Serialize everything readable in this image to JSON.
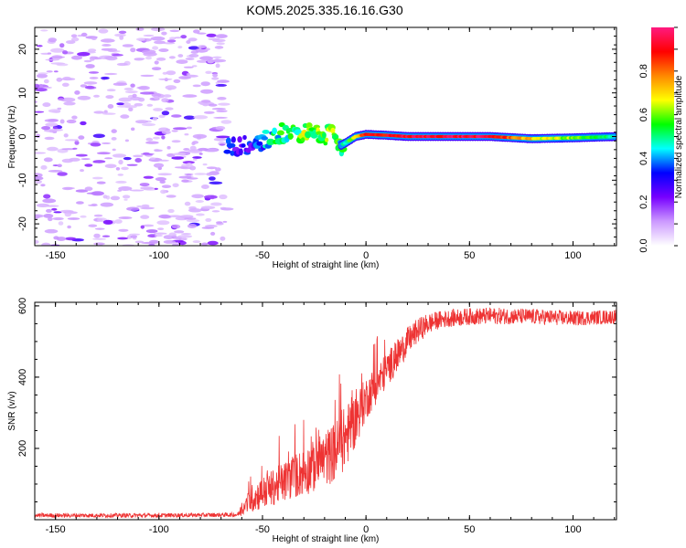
{
  "title": "KOM5.2025.335.16.16.G30",
  "chart_data": [
    {
      "type": "heatmap",
      "name": "spectrogram",
      "xlabel": "Height of straight line (km)",
      "ylabel": "Frequency (Hz)",
      "xlim": [
        -160,
        121
      ],
      "ylim": [
        -25,
        25
      ],
      "xticks": [
        -150,
        -100,
        -50,
        0,
        50,
        100
      ],
      "yticks": [
        -20,
        -10,
        0,
        10,
        20
      ],
      "colorbar": {
        "label": "Normalized spectral amplitude",
        "range": [
          0,
          1
        ],
        "ticks": [
          0.0,
          0.2,
          0.4,
          0.6,
          0.8
        ],
        "colors": [
          "#ffffff",
          "#cc99ff",
          "#7700ff",
          "#0000ff",
          "#00ffff",
          "#00ff00",
          "#ffff00",
          "#ff8800",
          "#ff0000",
          "#ff1a80"
        ]
      },
      "noise_region_x": [
        -160,
        -67
      ],
      "signal_track": {
        "x": [
          -67,
          -60,
          -55,
          -50,
          -45,
          -40,
          -35,
          -30,
          -25,
          -20,
          -15,
          -12,
          -10,
          -5,
          0,
          10,
          20,
          40,
          60,
          80,
          100,
          121
        ],
        "freq": [
          -2.5,
          -2,
          -2,
          -1,
          0,
          1,
          0.5,
          1,
          0.5,
          0.5,
          0,
          -2,
          -1.5,
          0,
          0.5,
          0.3,
          0,
          0,
          0,
          -0.5,
          -0.3,
          0
        ],
        "amplitude": [
          0.3,
          0.25,
          0.3,
          0.35,
          0.45,
          0.5,
          0.5,
          0.6,
          0.55,
          0.6,
          0.6,
          0.45,
          0.5,
          0.7,
          0.85,
          0.9,
          0.92,
          0.95,
          0.93,
          0.7,
          0.6,
          0.45
        ]
      }
    },
    {
      "type": "line",
      "name": "snr",
      "xlabel": "Height of straight line (km)",
      "ylabel": "SNR (v/v)",
      "xlim": [
        -160,
        121
      ],
      "ylim": [
        0,
        610
      ],
      "xticks": [
        -150,
        -100,
        -50,
        0,
        50,
        100
      ],
      "yticks": [
        200,
        400,
        600
      ],
      "color": "#ee3333",
      "trend": {
        "x": [
          -160,
          -100,
          -62,
          -55,
          -45,
          -35,
          -25,
          -15,
          -10,
          -5,
          0,
          5,
          10,
          15,
          20,
          25,
          30,
          35,
          40,
          50,
          60,
          80,
          100,
          121
        ],
        "snr": [
          12,
          12,
          14,
          60,
          90,
          120,
          150,
          190,
          230,
          280,
          340,
          380,
          420,
          460,
          500,
          530,
          550,
          560,
          565,
          570,
          572,
          570,
          565,
          570
        ]
      },
      "noise": {
        "x": [
          -160,
          -62,
          -55,
          -10,
          0,
          20,
          35,
          121
        ],
        "amp": [
          6,
          6,
          40,
          90,
          60,
          40,
          25,
          20
        ]
      }
    }
  ]
}
